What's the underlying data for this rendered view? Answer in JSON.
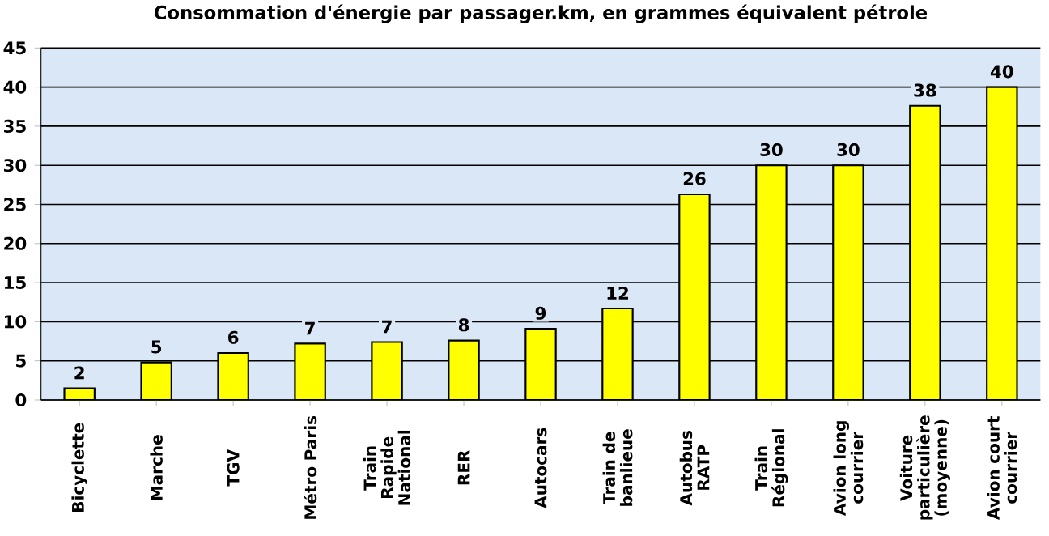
{
  "chart_data": {
    "type": "bar",
    "title": "Consommation d'énergie par passager.km, en grammes équivalent pétrole",
    "categories": [
      "Bicyclette",
      "Marche",
      "TGV",
      "Métro Paris",
      "Train Rapide National",
      "RER",
      "Autocars",
      "Train de banlieue",
      "Autobus RATP",
      "Train Régional",
      "Avion long courrier",
      "Voiture particulière (moyenne)",
      "Avion court courrier"
    ],
    "values": [
      1.5,
      4.8,
      6,
      7.2,
      7.4,
      7.6,
      9.1,
      11.7,
      26.3,
      30,
      30,
      37.6,
      40
    ],
    "value_labels": [
      "2",
      "5",
      "6",
      "7",
      "7",
      "8",
      "9",
      "12",
      "26",
      "30",
      "30",
      "38",
      "40"
    ],
    "color": "#ffff00",
    "ylim": [
      0,
      45
    ],
    "yticks": [
      0,
      5,
      10,
      15,
      20,
      25,
      30,
      35,
      40,
      45
    ],
    "grid": "y"
  }
}
